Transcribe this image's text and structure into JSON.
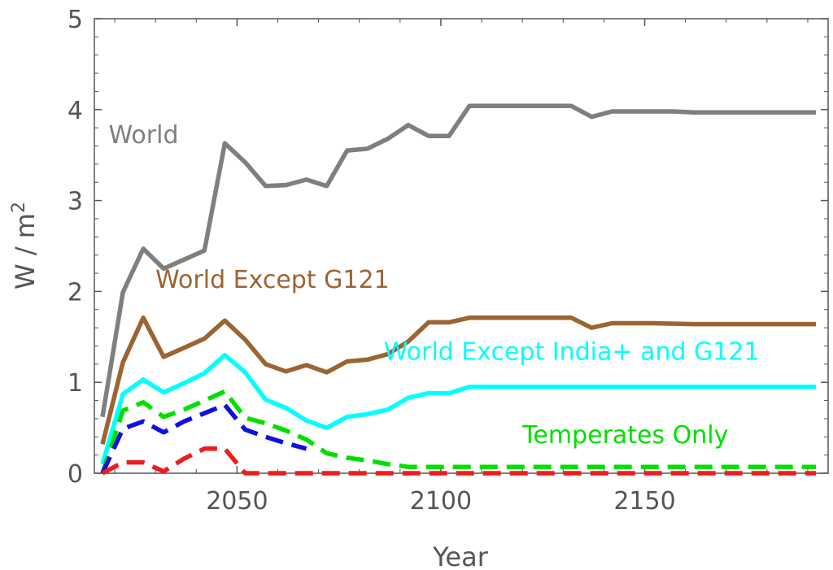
{
  "chart_data": {
    "type": "line",
    "title": "",
    "xlabel": "Year",
    "ylabel_main": "W / m",
    "ylabel_sup": "2",
    "xlim": [
      2015,
      2195
    ],
    "ylim": [
      0,
      5
    ],
    "xticks": [
      2050,
      2100,
      2150
    ],
    "yticks": [
      0,
      1,
      2,
      3,
      4,
      5
    ],
    "grid": false,
    "series": [
      {
        "name": "World",
        "color": "#7f7f7f",
        "dashed": false,
        "label": "World",
        "label_x": 2018.5,
        "label_y": 3.63,
        "points": [
          [
            2017,
            0.62
          ],
          [
            2022,
            1.99
          ],
          [
            2027,
            2.47
          ],
          [
            2032,
            2.25
          ],
          [
            2037,
            2.35
          ],
          [
            2042,
            2.45
          ],
          [
            2047,
            3.63
          ],
          [
            2052,
            3.42
          ],
          [
            2057,
            3.16
          ],
          [
            2062,
            3.17
          ],
          [
            2067,
            3.23
          ],
          [
            2072,
            3.16
          ],
          [
            2077,
            3.55
          ],
          [
            2082,
            3.57
          ],
          [
            2087,
            3.68
          ],
          [
            2092,
            3.83
          ],
          [
            2097,
            3.71
          ],
          [
            2102,
            3.71
          ],
          [
            2107,
            4.04
          ],
          [
            2112,
            4.04
          ],
          [
            2117,
            4.04
          ],
          [
            2122,
            4.04
          ],
          [
            2127,
            4.04
          ],
          [
            2132,
            4.04
          ],
          [
            2137,
            3.92
          ],
          [
            2142,
            3.98
          ],
          [
            2147,
            3.98
          ],
          [
            2152,
            3.98
          ],
          [
            2157,
            3.98
          ],
          [
            2162,
            3.97
          ],
          [
            2192,
            3.97
          ]
        ]
      },
      {
        "name": "World Except G121",
        "color": "#9b6431",
        "dashed": false,
        "label": "World Except G121",
        "label_x": 2030,
        "label_y": 2.04,
        "points": [
          [
            2017,
            0.32
          ],
          [
            2022,
            1.22
          ],
          [
            2027,
            1.71
          ],
          [
            2032,
            1.28
          ],
          [
            2037,
            1.38
          ],
          [
            2042,
            1.48
          ],
          [
            2047,
            1.68
          ],
          [
            2052,
            1.47
          ],
          [
            2057,
            1.2
          ],
          [
            2062,
            1.12
          ],
          [
            2067,
            1.19
          ],
          [
            2072,
            1.11
          ],
          [
            2077,
            1.23
          ],
          [
            2082,
            1.25
          ],
          [
            2087,
            1.31
          ],
          [
            2092,
            1.45
          ],
          [
            2097,
            1.66
          ],
          [
            2102,
            1.66
          ],
          [
            2107,
            1.71
          ],
          [
            2112,
            1.71
          ],
          [
            2117,
            1.71
          ],
          [
            2122,
            1.71
          ],
          [
            2127,
            1.71
          ],
          [
            2132,
            1.71
          ],
          [
            2137,
            1.6
          ],
          [
            2142,
            1.65
          ],
          [
            2152,
            1.65
          ],
          [
            2162,
            1.64
          ],
          [
            2192,
            1.64
          ]
        ]
      },
      {
        "name": "World Except India+ and G121",
        "color": "#00ffff",
        "dashed": false,
        "label": "World Except India+ and G121",
        "label_x": 2086,
        "label_y": 1.25,
        "points": [
          [
            2017,
            0.1
          ],
          [
            2022,
            0.87
          ],
          [
            2027,
            1.03
          ],
          [
            2032,
            0.89
          ],
          [
            2037,
            0.99
          ],
          [
            2042,
            1.1
          ],
          [
            2047,
            1.3
          ],
          [
            2052,
            1.11
          ],
          [
            2057,
            0.81
          ],
          [
            2062,
            0.72
          ],
          [
            2067,
            0.58
          ],
          [
            2072,
            0.5
          ],
          [
            2077,
            0.62
          ],
          [
            2082,
            0.65
          ],
          [
            2087,
            0.7
          ],
          [
            2092,
            0.83
          ],
          [
            2097,
            0.88
          ],
          [
            2102,
            0.88
          ],
          [
            2107,
            0.95
          ],
          [
            2137,
            0.95
          ],
          [
            2192,
            0.95
          ]
        ]
      },
      {
        "name": "Temperates Only",
        "color": "#00e000",
        "dashed": true,
        "label": "Temperates Only",
        "label_x": 2120,
        "label_y": 0.33,
        "points": [
          [
            2017,
            0.0
          ],
          [
            2022,
            0.69
          ],
          [
            2027,
            0.78
          ],
          [
            2032,
            0.62
          ],
          [
            2037,
            0.7
          ],
          [
            2042,
            0.8
          ],
          [
            2047,
            0.9
          ],
          [
            2052,
            0.61
          ],
          [
            2057,
            0.55
          ],
          [
            2062,
            0.47
          ],
          [
            2067,
            0.37
          ],
          [
            2072,
            0.22
          ],
          [
            2077,
            0.17
          ],
          [
            2082,
            0.14
          ],
          [
            2087,
            0.1
          ],
          [
            2092,
            0.07
          ],
          [
            2097,
            0.07
          ],
          [
            2192,
            0.07
          ]
        ]
      },
      {
        "name": "Blue series",
        "color": "#1010e0",
        "dashed": true,
        "label": "",
        "label_x": 0,
        "label_y": 0,
        "points": [
          [
            2017,
            0.0
          ],
          [
            2022,
            0.49
          ],
          [
            2027,
            0.57
          ],
          [
            2032,
            0.45
          ],
          [
            2037,
            0.57
          ],
          [
            2042,
            0.66
          ],
          [
            2047,
            0.75
          ],
          [
            2052,
            0.48
          ],
          [
            2057,
            0.4
          ],
          [
            2062,
            0.33
          ],
          [
            2067,
            0.27
          ]
        ]
      },
      {
        "name": "Red series",
        "color": "#ee1c1c",
        "dashed": true,
        "label": "",
        "label_x": 0,
        "label_y": 0,
        "points": [
          [
            2017,
            0.0
          ],
          [
            2022,
            0.12
          ],
          [
            2027,
            0.12
          ],
          [
            2032,
            0.02
          ],
          [
            2037,
            0.16
          ],
          [
            2042,
            0.27
          ],
          [
            2047,
            0.27
          ],
          [
            2052,
            0.0
          ],
          [
            2192,
            0.0
          ]
        ]
      }
    ]
  }
}
